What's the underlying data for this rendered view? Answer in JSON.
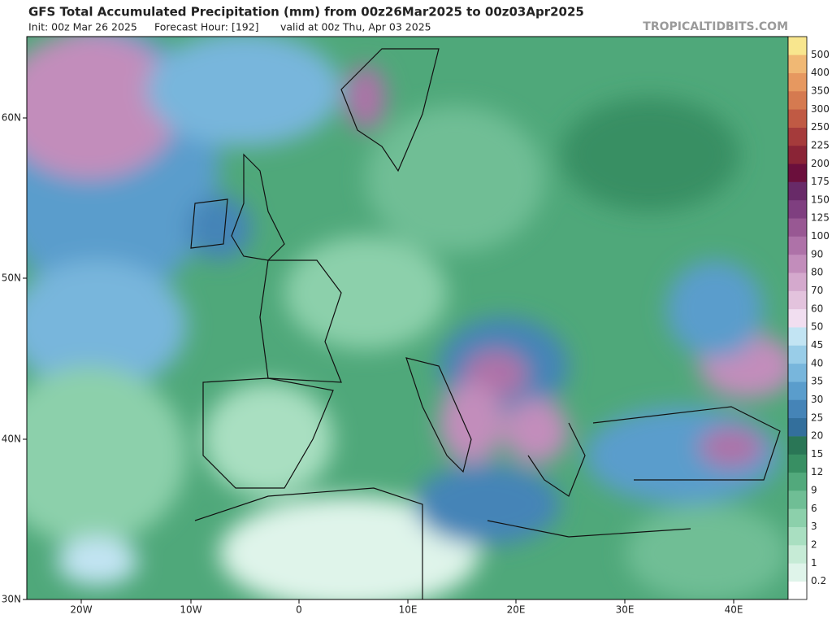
{
  "header": {
    "title": "GFS Total Accumulated Precipitation (mm) from 00z26Mar2025 to 00z03Apr2025",
    "init": "Init: 00z Mar 26 2025",
    "forecast_hour": "Forecast Hour: [192]",
    "valid": "valid at 00z Thu, Apr 03 2025",
    "watermark": "TROPICALTIDBITS.COM"
  },
  "map": {
    "lat_labels": [
      "60N",
      "50N",
      "40N",
      "30N"
    ],
    "lon_labels": [
      "20W",
      "10W",
      "0",
      "10E",
      "20E",
      "30E",
      "40E"
    ]
  },
  "colorbar": {
    "levels": [
      0.2,
      1,
      2,
      3,
      6,
      9,
      12,
      15,
      20,
      25,
      30,
      35,
      40,
      45,
      50,
      60,
      70,
      80,
      90,
      100,
      125,
      150,
      175,
      200,
      225,
      250,
      300,
      350,
      400,
      500
    ],
    "colors": [
      "#ffffff",
      "#dff4ea",
      "#c6ebd6",
      "#a9dfc1",
      "#8cd0ab",
      "#6fbe95",
      "#52a97c",
      "#388f63",
      "#2a7656",
      "#336f9c",
      "#4584b7",
      "#5a9dcc",
      "#78b6dc",
      "#99cde8",
      "#c2e4f3",
      "#f1def0",
      "#e3c3dd",
      "#d4a9cd",
      "#c28dbb",
      "#ae72a8",
      "#985893",
      "#7f3f80",
      "#682a68",
      "#6b0f3c",
      "#8a2436",
      "#a53b3b",
      "#c05a44",
      "#d57a50",
      "#e69860",
      "#f0b874",
      "#f8e68e"
    ]
  }
}
